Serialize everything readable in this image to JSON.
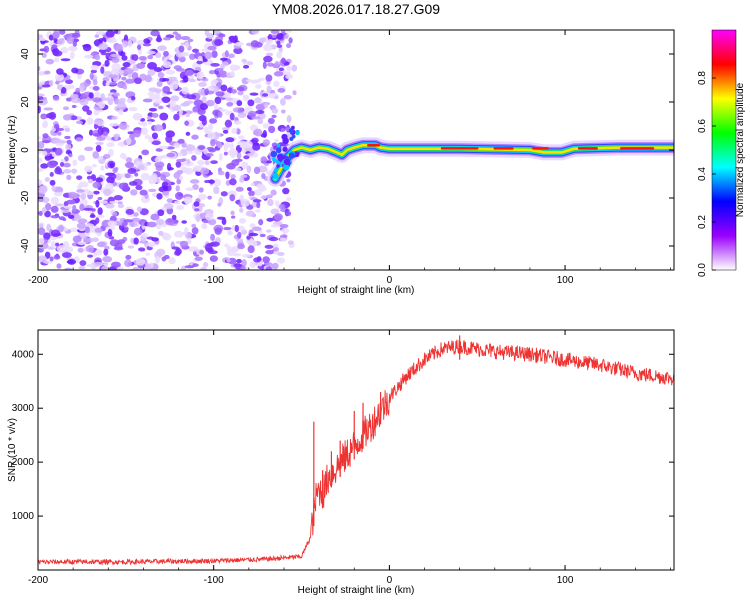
{
  "title": "YM08.2026.017.18.27.G09",
  "chart_data": [
    {
      "type": "heatmap",
      "xlabel": "Height of straight line (km)",
      "ylabel": "Frequency (Hz)",
      "xlim": [
        -200,
        162
      ],
      "ylim": [
        -50,
        50
      ],
      "x_ticks": [
        -200,
        -100,
        0,
        100
      ],
      "y_ticks": [
        -40,
        -20,
        0,
        20,
        40
      ],
      "noise_region_x": [
        -200,
        -57
      ],
      "ridge": [
        {
          "x": -65,
          "y": -12
        },
        {
          "x": -62,
          "y": -8
        },
        {
          "x": -58,
          "y": -3
        },
        {
          "x": -54,
          "y": 0
        },
        {
          "x": -50,
          "y": 1
        },
        {
          "x": -45,
          "y": 0
        },
        {
          "x": -40,
          "y": 1
        },
        {
          "x": -35,
          "y": 0.5
        },
        {
          "x": -30,
          "y": -1
        },
        {
          "x": -27,
          "y": -2
        },
        {
          "x": -24,
          "y": 0
        },
        {
          "x": -20,
          "y": 1
        },
        {
          "x": -15,
          "y": 2
        },
        {
          "x": -8,
          "y": 2
        },
        {
          "x": -5,
          "y": 1
        },
        {
          "x": 0,
          "y": 0.5
        },
        {
          "x": 40,
          "y": 0.5
        },
        {
          "x": 80,
          "y": 0
        },
        {
          "x": 88,
          "y": -1
        },
        {
          "x": 98,
          "y": -1
        },
        {
          "x": 105,
          "y": 0.5
        },
        {
          "x": 130,
          "y": 1
        },
        {
          "x": 162,
          "y": 1
        }
      ],
      "colorbar": {
        "label": "Normalized spectral amplitude",
        "ticks": [
          0.0,
          0.2,
          0.4,
          0.6,
          0.8
        ],
        "range": [
          0,
          1
        ],
        "colors": [
          "#ffffff",
          "#9900ff",
          "#0000ff",
          "#00ffff",
          "#00ff00",
          "#ffff00",
          "#ff0000",
          "#ff00ff"
        ]
      }
    },
    {
      "type": "line",
      "xlabel": "Height of straight line (km)",
      "ylabel": "SNR (10 * v/v)",
      "xlim": [
        -200,
        162
      ],
      "ylim": [
        0,
        4450
      ],
      "x_ticks": [
        -200,
        -100,
        0,
        100
      ],
      "y_ticks": [
        1000,
        2000,
        3000,
        4000
      ],
      "color": "#ee3333",
      "x": [
        -200,
        -150,
        -100,
        -70,
        -50,
        -45,
        -42,
        -40,
        -38,
        -35,
        -30,
        -25,
        -20,
        -15,
        -10,
        -5,
        0,
        10,
        20,
        30,
        40,
        50,
        60,
        80,
        100,
        120,
        140,
        162
      ],
      "values": [
        150,
        150,
        170,
        200,
        250,
        600,
        1300,
        1500,
        1400,
        1700,
        1900,
        2100,
        2300,
        2500,
        2700,
        2950,
        3200,
        3600,
        3900,
        4100,
        4150,
        4100,
        4050,
        4000,
        3900,
        3800,
        3650,
        3550
      ],
      "spikes": [
        {
          "x": -43,
          "y": 2750
        },
        {
          "x": -38,
          "y": 1850
        },
        {
          "x": -33,
          "y": 2200
        },
        {
          "x": -28,
          "y": 2400
        },
        {
          "x": -20,
          "y": 2950
        },
        {
          "x": -15,
          "y": 3100
        },
        {
          "x": -5,
          "y": 3300
        },
        {
          "x": 40,
          "y": 4350
        }
      ]
    }
  ]
}
